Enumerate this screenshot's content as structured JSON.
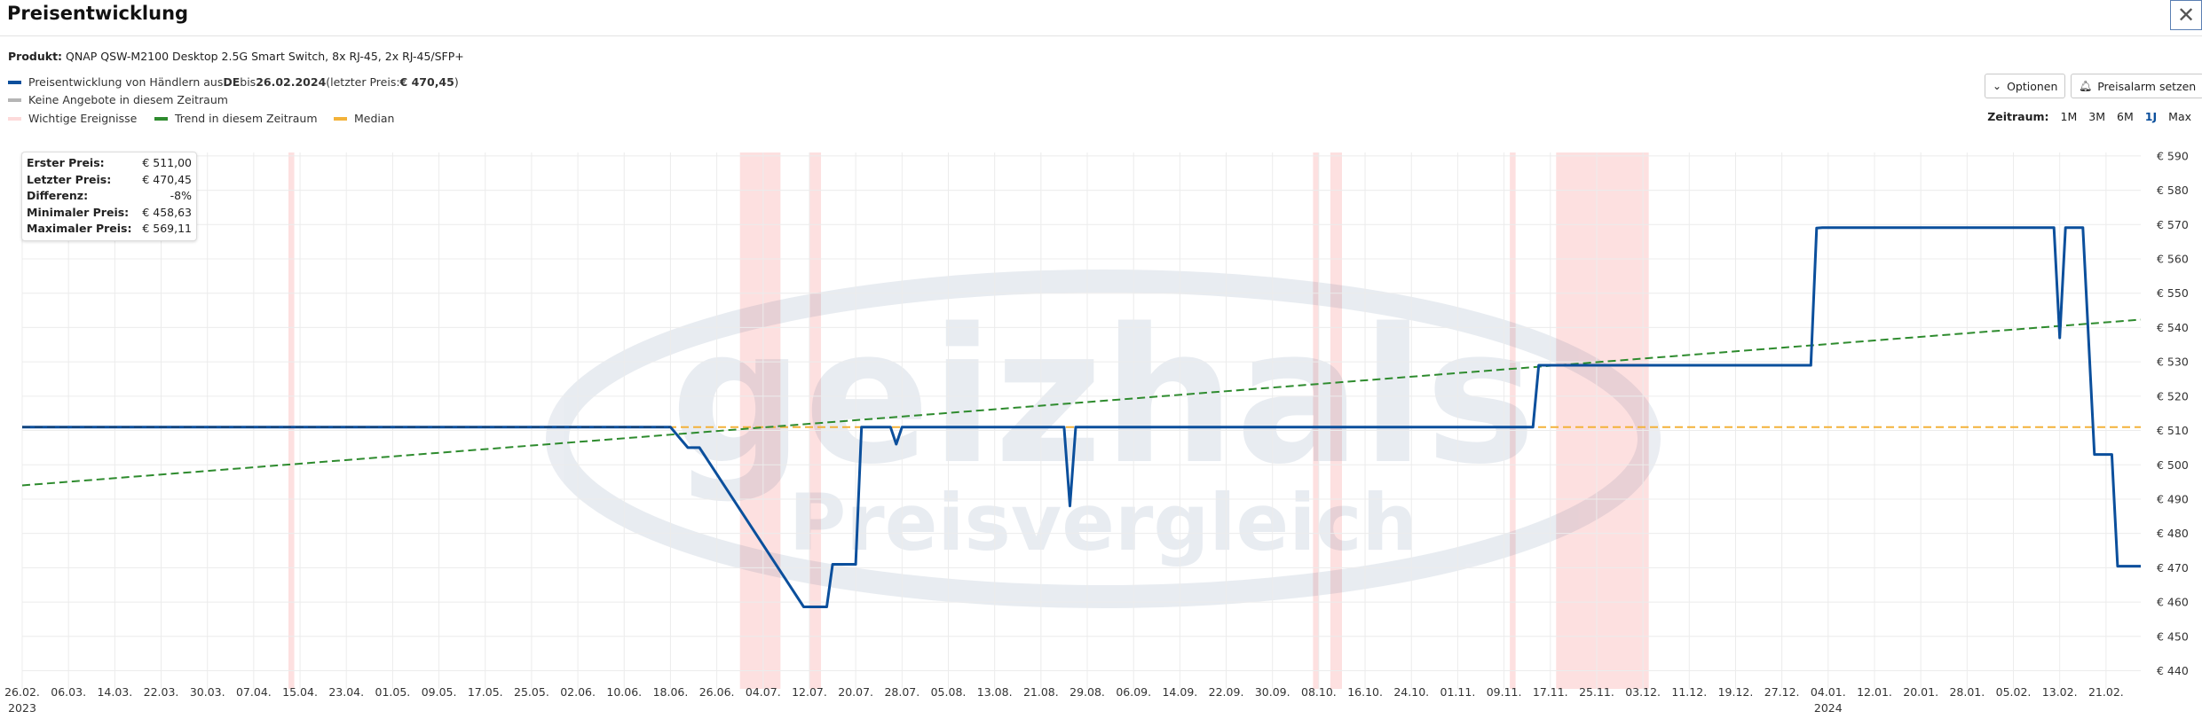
{
  "header": {
    "title": "Preisentwicklung",
    "close_icon": "close-icon"
  },
  "product": {
    "label": "Produkt:",
    "name": "QNAP QSW-M2100 Desktop 2.5G Smart Switch, 8x RJ-45, 2x RJ-45/SFP+"
  },
  "legend": {
    "series_line": {
      "pre": "Preisentwicklung von Händlern aus ",
      "country": "DE",
      "mid": " bis ",
      "date": "26.02.2024",
      "paren_open": " (letzter Preis: ",
      "last_price": "€ 470,45",
      "paren_close": ")",
      "color": "#0b4f9c"
    },
    "no_offers": {
      "label": "Keine Angebote in diesem Zeitraum",
      "color": "#b5b5b5"
    },
    "events": {
      "label": "Wichtige Ereignisse",
      "color": "#fddada"
    },
    "trend": {
      "label": "Trend in diesem Zeitraum",
      "color": "#2e8b2e"
    },
    "median": {
      "label": "Median",
      "color": "#f3b23a"
    }
  },
  "toolbar": {
    "options_label": "Optionen",
    "options_icon": "chevron-down-icon",
    "alarm_label": "Preisalarm setzen",
    "alarm_icon": "bell-icon"
  },
  "zeitraum": {
    "label": "Zeitraum:",
    "options": [
      "1M",
      "3M",
      "6M",
      "1J",
      "Max"
    ],
    "selected": "1J"
  },
  "stats": [
    {
      "key": "Erster Preis:",
      "value": "€ 511,00"
    },
    {
      "key": "Letzter Preis:",
      "value": "€ 470,45"
    },
    {
      "key": "Differenz:",
      "value": "-8%"
    },
    {
      "key": "Minimaler Preis:",
      "value": "€ 458,63"
    },
    {
      "key": "Maximaler Preis:",
      "value": "€ 569,11"
    }
  ],
  "watermark": {
    "brand": "geizhals",
    "sub": "Preisvergleich"
  },
  "chart_data": {
    "type": "line",
    "x_range": [
      "2023-02-26",
      "2024-02-27"
    ],
    "ylim": [
      436,
      591
    ],
    "y_ticks": [
      440,
      450,
      460,
      470,
      480,
      490,
      500,
      510,
      520,
      530,
      540,
      550,
      560,
      570,
      580,
      590
    ],
    "y_tick_labels": [
      "€ 440",
      "€ 450",
      "€ 460",
      "€ 470",
      "€ 480",
      "€ 490",
      "€ 500",
      "€ 510",
      "€ 520",
      "€ 530",
      "€ 540",
      "€ 550",
      "€ 560",
      "€ 570",
      "€ 580",
      "€ 590"
    ],
    "x_ticks": [
      {
        "date": "2023-02-26",
        "label": "26.02.",
        "year": "2023"
      },
      {
        "date": "2023-03-06",
        "label": "06.03."
      },
      {
        "date": "2023-03-14",
        "label": "14.03."
      },
      {
        "date": "2023-03-22",
        "label": "22.03."
      },
      {
        "date": "2023-03-30",
        "label": "30.03."
      },
      {
        "date": "2023-04-07",
        "label": "07.04."
      },
      {
        "date": "2023-04-15",
        "label": "15.04."
      },
      {
        "date": "2023-04-23",
        "label": "23.04."
      },
      {
        "date": "2023-05-01",
        "label": "01.05."
      },
      {
        "date": "2023-05-09",
        "label": "09.05."
      },
      {
        "date": "2023-05-17",
        "label": "17.05."
      },
      {
        "date": "2023-05-25",
        "label": "25.05."
      },
      {
        "date": "2023-06-02",
        "label": "02.06."
      },
      {
        "date": "2023-06-10",
        "label": "10.06."
      },
      {
        "date": "2023-06-18",
        "label": "18.06."
      },
      {
        "date": "2023-06-26",
        "label": "26.06."
      },
      {
        "date": "2023-07-04",
        "label": "04.07."
      },
      {
        "date": "2023-07-12",
        "label": "12.07."
      },
      {
        "date": "2023-07-20",
        "label": "20.07."
      },
      {
        "date": "2023-07-28",
        "label": "28.07."
      },
      {
        "date": "2023-08-05",
        "label": "05.08."
      },
      {
        "date": "2023-08-13",
        "label": "13.08."
      },
      {
        "date": "2023-08-21",
        "label": "21.08."
      },
      {
        "date": "2023-08-29",
        "label": "29.08."
      },
      {
        "date": "2023-09-06",
        "label": "06.09."
      },
      {
        "date": "2023-09-14",
        "label": "14.09."
      },
      {
        "date": "2023-09-22",
        "label": "22.09."
      },
      {
        "date": "2023-09-30",
        "label": "30.09."
      },
      {
        "date": "2023-10-08",
        "label": "08.10."
      },
      {
        "date": "2023-10-16",
        "label": "16.10."
      },
      {
        "date": "2023-10-24",
        "label": "24.10."
      },
      {
        "date": "2023-11-01",
        "label": "01.11."
      },
      {
        "date": "2023-11-09",
        "label": "09.11."
      },
      {
        "date": "2023-11-17",
        "label": "17.11."
      },
      {
        "date": "2023-11-25",
        "label": "25.11."
      },
      {
        "date": "2023-12-03",
        "label": "03.12."
      },
      {
        "date": "2023-12-11",
        "label": "11.12."
      },
      {
        "date": "2023-12-19",
        "label": "19.12."
      },
      {
        "date": "2023-12-27",
        "label": "27.12."
      },
      {
        "date": "2024-01-04",
        "label": "04.01.",
        "year": "2024"
      },
      {
        "date": "2024-01-12",
        "label": "12.01."
      },
      {
        "date": "2024-01-20",
        "label": "20.01."
      },
      {
        "date": "2024-01-28",
        "label": "28.01."
      },
      {
        "date": "2024-02-05",
        "label": "05.02."
      },
      {
        "date": "2024-02-13",
        "label": "13.02."
      },
      {
        "date": "2024-02-21",
        "label": "21.02."
      }
    ],
    "events": [
      [
        "2023-04-13",
        "2023-04-14"
      ],
      [
        "2023-06-30",
        "2023-07-07"
      ],
      [
        "2023-07-12",
        "2023-07-14"
      ],
      [
        "2023-10-07",
        "2023-10-08"
      ],
      [
        "2023-10-10",
        "2023-10-12"
      ],
      [
        "2023-11-10",
        "2023-11-11"
      ],
      [
        "2023-11-18",
        "2023-12-04"
      ]
    ],
    "series": [
      {
        "name": "Preisentwicklung",
        "color": "#0b4f9c",
        "points": [
          [
            "2023-02-26",
            511
          ],
          [
            "2023-06-18",
            511
          ],
          [
            "2023-06-21",
            505
          ],
          [
            "2023-06-23",
            505
          ],
          [
            "2023-07-11",
            458.6
          ],
          [
            "2023-07-15",
            458.6
          ],
          [
            "2023-07-16",
            471
          ],
          [
            "2023-07-20",
            471
          ],
          [
            "2023-07-21",
            511
          ],
          [
            "2023-07-26",
            511
          ],
          [
            "2023-07-27",
            506
          ],
          [
            "2023-07-28",
            511
          ],
          [
            "2023-08-25",
            511
          ],
          [
            "2023-08-26",
            488
          ],
          [
            "2023-08-27",
            511
          ],
          [
            "2023-11-14",
            511
          ],
          [
            "2023-11-15",
            529
          ],
          [
            "2024-01-01",
            529
          ],
          [
            "2024-01-02",
            569
          ],
          [
            "2024-01-03",
            569.1
          ],
          [
            "2024-02-12",
            569.1
          ],
          [
            "2024-02-13",
            537
          ],
          [
            "2024-02-14",
            569.1
          ],
          [
            "2024-02-17",
            569.1
          ],
          [
            "2024-02-19",
            503
          ],
          [
            "2024-02-22",
            503
          ],
          [
            "2024-02-23",
            470.45
          ],
          [
            "2024-02-27",
            470.45
          ]
        ]
      },
      {
        "name": "Trend",
        "color": "#2e8b2e",
        "dashed": true,
        "points": [
          [
            "2023-02-26",
            494
          ],
          [
            "2024-02-27",
            542.3
          ]
        ]
      },
      {
        "name": "Median",
        "color": "#f3b23a",
        "dashed": true,
        "points": [
          [
            "2023-02-26",
            511
          ],
          [
            "2024-02-27",
            511
          ]
        ]
      },
      {
        "name": "Keine Angebote",
        "color": "#b5b5b5",
        "points": []
      }
    ],
    "grid": true,
    "y_axis_side": "right",
    "legend_position": "top-left"
  }
}
